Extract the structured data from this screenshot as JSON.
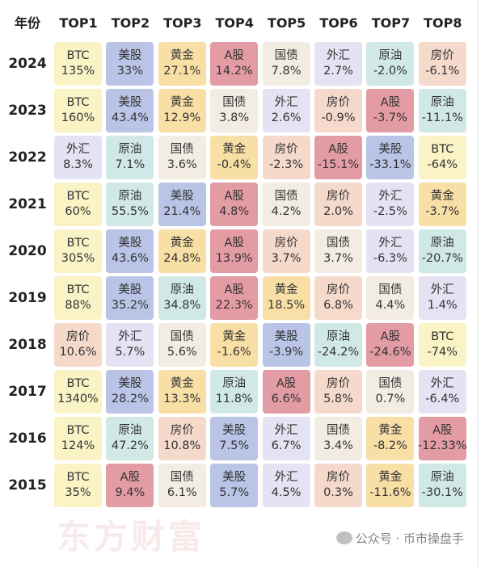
{
  "header": {
    "year_label": "年份",
    "ranks": [
      "TOP1",
      "TOP2",
      "TOP3",
      "TOP4",
      "TOP5",
      "TOP6",
      "TOP7",
      "TOP8"
    ]
  },
  "asset_colors": {
    "BTC": "#faf3c6",
    "美股": "#b9c4e7",
    "黄金": "#f8dfa6",
    "A股": "#e39ba4",
    "国债": "#f3ece2",
    "外汇": "#e5e3f3",
    "原油": "#d0e9e6",
    "房价": "#f5d9cb"
  },
  "rows": [
    {
      "year": "2024",
      "cells": [
        {
          "asset": "BTC",
          "value": "135%"
        },
        {
          "asset": "美股",
          "value": "33%"
        },
        {
          "asset": "黄金",
          "value": "27.1%"
        },
        {
          "asset": "A股",
          "value": "14.2%"
        },
        {
          "asset": "国债",
          "value": "7.8%"
        },
        {
          "asset": "外汇",
          "value": "2.7%"
        },
        {
          "asset": "原油",
          "value": "-2.0%"
        },
        {
          "asset": "房价",
          "value": "-6.1%"
        }
      ]
    },
    {
      "year": "2023",
      "cells": [
        {
          "asset": "BTC",
          "value": "160%"
        },
        {
          "asset": "美股",
          "value": "43.4%"
        },
        {
          "asset": "黄金",
          "value": "12.9%"
        },
        {
          "asset": "国债",
          "value": "3.8%"
        },
        {
          "asset": "外汇",
          "value": "2.6%"
        },
        {
          "asset": "房价",
          "value": "-0.9%"
        },
        {
          "asset": "A股",
          "value": "-3.7%"
        },
        {
          "asset": "原油",
          "value": "-11.1%"
        }
      ]
    },
    {
      "year": "2022",
      "cells": [
        {
          "asset": "外汇",
          "value": "8.3%"
        },
        {
          "asset": "原油",
          "value": "7.1%"
        },
        {
          "asset": "国债",
          "value": "3.6%"
        },
        {
          "asset": "黄金",
          "value": "-0.4%"
        },
        {
          "asset": "房价",
          "value": "-2.3%"
        },
        {
          "asset": "A股",
          "value": "-15.1%"
        },
        {
          "asset": "美股",
          "value": "-33.1%"
        },
        {
          "asset": "BTC",
          "value": "-64%"
        }
      ]
    },
    {
      "year": "2021",
      "cells": [
        {
          "asset": "BTC",
          "value": "60%"
        },
        {
          "asset": "原油",
          "value": "55.5%"
        },
        {
          "asset": "美股",
          "value": "21.4%"
        },
        {
          "asset": "A股",
          "value": "4.8%"
        },
        {
          "asset": "国债",
          "value": "4.2%"
        },
        {
          "asset": "房价",
          "value": "2.0%"
        },
        {
          "asset": "外汇",
          "value": "-2.5%"
        },
        {
          "asset": "黄金",
          "value": "-3.7%"
        }
      ]
    },
    {
      "year": "2020",
      "cells": [
        {
          "asset": "BTC",
          "value": "305%"
        },
        {
          "asset": "美股",
          "value": "43.6%"
        },
        {
          "asset": "黄金",
          "value": "24.8%"
        },
        {
          "asset": "A股",
          "value": "13.9%"
        },
        {
          "asset": "房价",
          "value": "3.7%"
        },
        {
          "asset": "国债",
          "value": "3.7%"
        },
        {
          "asset": "外汇",
          "value": "-6.3%"
        },
        {
          "asset": "原油",
          "value": "-20.7%"
        }
      ]
    },
    {
      "year": "2019",
      "cells": [
        {
          "asset": "BTC",
          "value": "88%"
        },
        {
          "asset": "美股",
          "value": "35.2%"
        },
        {
          "asset": "原油",
          "value": "34.8%"
        },
        {
          "asset": "A股",
          "value": "22.3%"
        },
        {
          "asset": "黄金",
          "value": "18.5%"
        },
        {
          "asset": "房价",
          "value": "6.8%"
        },
        {
          "asset": "国债",
          "value": "4.4%"
        },
        {
          "asset": "外汇",
          "value": "1.4%"
        }
      ]
    },
    {
      "year": "2018",
      "cells": [
        {
          "asset": "房价",
          "value": "10.6%"
        },
        {
          "asset": "外汇",
          "value": "5.7%"
        },
        {
          "asset": "国债",
          "value": "5.6%"
        },
        {
          "asset": "黄金",
          "value": "-1.6%"
        },
        {
          "asset": "美股",
          "value": "-3.9%"
        },
        {
          "asset": "原油",
          "value": "-24.2%"
        },
        {
          "asset": "A股",
          "value": "-24.6%"
        },
        {
          "asset": "BTC",
          "value": "-74%"
        }
      ]
    },
    {
      "year": "2017",
      "cells": [
        {
          "asset": "BTC",
          "value": "1340%"
        },
        {
          "asset": "美股",
          "value": "28.2%"
        },
        {
          "asset": "黄金",
          "value": "13.3%"
        },
        {
          "asset": "原油",
          "value": "11.8%"
        },
        {
          "asset": "A股",
          "value": "6.6%"
        },
        {
          "asset": "房价",
          "value": "5.8%"
        },
        {
          "asset": "国债",
          "value": "0.7%"
        },
        {
          "asset": "外汇",
          "value": "-6.4%"
        }
      ]
    },
    {
      "year": "2016",
      "cells": [
        {
          "asset": "BTC",
          "value": "124%"
        },
        {
          "asset": "原油",
          "value": "47.2%"
        },
        {
          "asset": "房价",
          "value": "10.8%"
        },
        {
          "asset": "美股",
          "value": "7.5%"
        },
        {
          "asset": "外汇",
          "value": "6.7%"
        },
        {
          "asset": "国债",
          "value": "3.4%"
        },
        {
          "asset": "黄金",
          "value": "-8.2%"
        },
        {
          "asset": "A股",
          "value": "-12.33%"
        }
      ]
    },
    {
      "year": "2015",
      "cells": [
        {
          "asset": "BTC",
          "value": "35%"
        },
        {
          "asset": "A股",
          "value": "9.4%"
        },
        {
          "asset": "国债",
          "value": "6.1%"
        },
        {
          "asset": "美股",
          "value": "5.7%"
        },
        {
          "asset": "外汇",
          "value": "4.5%"
        },
        {
          "asset": "房价",
          "value": "0.3%"
        },
        {
          "asset": "黄金",
          "value": "-11.6%"
        },
        {
          "asset": "原油",
          "value": "-30.1%"
        }
      ]
    }
  ],
  "watermark": "东方财富",
  "footer": {
    "text": "公众号 · 币市操盘手"
  }
}
